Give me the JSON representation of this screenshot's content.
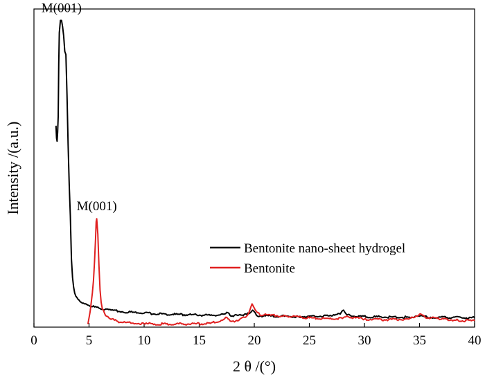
{
  "chart_data": {
    "type": "line",
    "xlabel": "2 θ /(°)",
    "ylabel": "Intensity /(a.u.)",
    "xlim": [
      0,
      40
    ],
    "ylim": [
      0,
      100
    ],
    "xticks": [
      "0",
      "5",
      "10",
      "15",
      "20",
      "25",
      "30",
      "35",
      "40"
    ],
    "grid": false,
    "legend_position": "center-right",
    "series": [
      {
        "name": "Bentonite nano-sheet hydrogel",
        "color": "#000000",
        "x": [
          2.0,
          2.05,
          2.1,
          2.15,
          2.2,
          2.25,
          2.3,
          2.4,
          2.5,
          2.6,
          2.7,
          2.8,
          2.9,
          3.0,
          3.1,
          3.2,
          3.3,
          3.4,
          3.5,
          3.6,
          3.7,
          3.8,
          4.0,
          4.3,
          4.6,
          5.0,
          5.5,
          6.0,
          7.0,
          8.0,
          10.0,
          12.0,
          14.0,
          16.0,
          17.2,
          17.5,
          17.8,
          19.0,
          19.6,
          19.85,
          20.2,
          21.0,
          24.0,
          27.0,
          27.8,
          28.1,
          28.4,
          29.0,
          31.0,
          34.0,
          35.0,
          36.0,
          38.0,
          40.0
        ],
        "y": [
          65,
          61,
          60,
          63,
          68,
          85,
          95,
          99,
          99,
          97,
          94,
          89,
          88,
          75,
          59,
          46,
          36,
          22,
          16,
          13,
          11,
          10,
          9,
          8,
          7.5,
          7,
          6.5,
          6,
          5.5,
          5,
          4.5,
          4.2,
          4.0,
          3.8,
          4.2,
          4.8,
          3.8,
          3.7,
          4.5,
          5.5,
          3.8,
          3.6,
          3.4,
          3.6,
          4.2,
          5.5,
          4.0,
          3.5,
          3.3,
          3.2,
          3.5,
          3.2,
          3.1,
          3.0
        ]
      },
      {
        "name": "Bentonite",
        "color": "#e02020",
        "x": [
          4.9,
          5.0,
          5.1,
          5.2,
          5.3,
          5.4,
          5.5,
          5.6,
          5.65,
          5.7,
          5.8,
          5.9,
          6.0,
          6.1,
          6.2,
          6.4,
          6.6,
          6.8,
          7.0,
          7.5,
          8.0,
          9.0,
          10.0,
          12.0,
          14.0,
          16.0,
          17.0,
          17.4,
          17.8,
          18.5,
          19.3,
          19.6,
          19.8,
          19.95,
          20.2,
          20.5,
          21.5,
          23.0,
          25.0,
          27.0,
          28.0,
          28.5,
          29.0,
          30.0,
          32.0,
          34.0,
          34.7,
          35.0,
          35.5,
          37.0,
          38.5,
          40.0
        ],
        "y": [
          1.0,
          3,
          5,
          8,
          11,
          15,
          21,
          29,
          34,
          35,
          30,
          20,
          12,
          8,
          6,
          4.5,
          3.5,
          3.0,
          2.5,
          2.0,
          1.5,
          1.3,
          1.1,
          1.0,
          1.0,
          1.2,
          2.2,
          3.2,
          2.0,
          2.0,
          3.5,
          5.5,
          7.5,
          6.5,
          5.0,
          4.0,
          3.8,
          3.5,
          3.0,
          2.6,
          2.8,
          3.4,
          3.0,
          2.6,
          2.4,
          2.6,
          3.6,
          4.2,
          3.2,
          2.6,
          2.2,
          2.0
        ]
      }
    ],
    "annotations": [
      {
        "text": "M(001)",
        "x": 2.5,
        "y": 99
      },
      {
        "text": "M(001)",
        "x": 5.7,
        "y": 35
      }
    ]
  }
}
